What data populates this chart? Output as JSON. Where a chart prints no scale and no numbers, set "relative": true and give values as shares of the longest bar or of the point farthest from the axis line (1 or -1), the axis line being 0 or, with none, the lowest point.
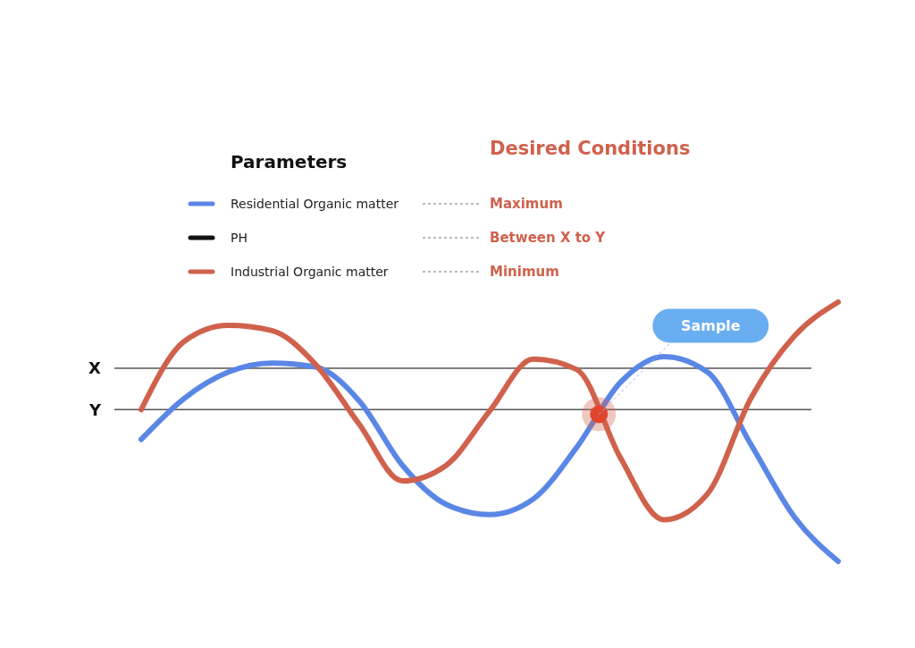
{
  "chart_data": {
    "type": "line",
    "relative": true,
    "legend_title": "Parameters",
    "legend": "top left",
    "grid": false,
    "marker": "none",
    "line_style": "solid",
    "categories": [
      null,
      null,
      null,
      null,
      null,
      null,
      null,
      null,
      null,
      null,
      null,
      null,
      null,
      null,
      null,
      null,
      null
    ],
    "series": [
      {
        "name": "Residential Organic matter",
        "color": "#5a86e6",
        "values": [
          0.47,
          0.63,
          0.73,
          0.765,
          0.75,
          0.62,
          0.37,
          0.22,
          0.18,
          0.24,
          0.44,
          0.69,
          0.79,
          0.73,
          0.45,
          0.17,
          0.0
        ]
      },
      {
        "name": "PH",
        "color": "#111111",
        "values": [
          null,
          null,
          null,
          null,
          null,
          null,
          null,
          null,
          null,
          null,
          null,
          null,
          null,
          null,
          null,
          null,
          null
        ]
      },
      {
        "name": "Industrial Organic matter",
        "color": "#d0614c",
        "values": [
          0.585,
          0.85,
          0.91,
          0.89,
          0.76,
          0.53,
          0.31,
          0.37,
          0.58,
          0.78,
          0.74,
          0.4,
          0.16,
          0.26,
          0.63,
          0.87,
          1.0
        ]
      }
    ],
    "ref_lines": [
      {
        "axis": "y",
        "value": 0.745,
        "label": "X",
        "color": "#555555"
      },
      {
        "axis": "y",
        "value": 0.585,
        "label": "Y",
        "color": "#555555"
      }
    ],
    "annotations": [
      "Desired Conditions",
      "Maximum",
      "Between X to Y",
      "Minimum",
      "Sample"
    ]
  }
}
